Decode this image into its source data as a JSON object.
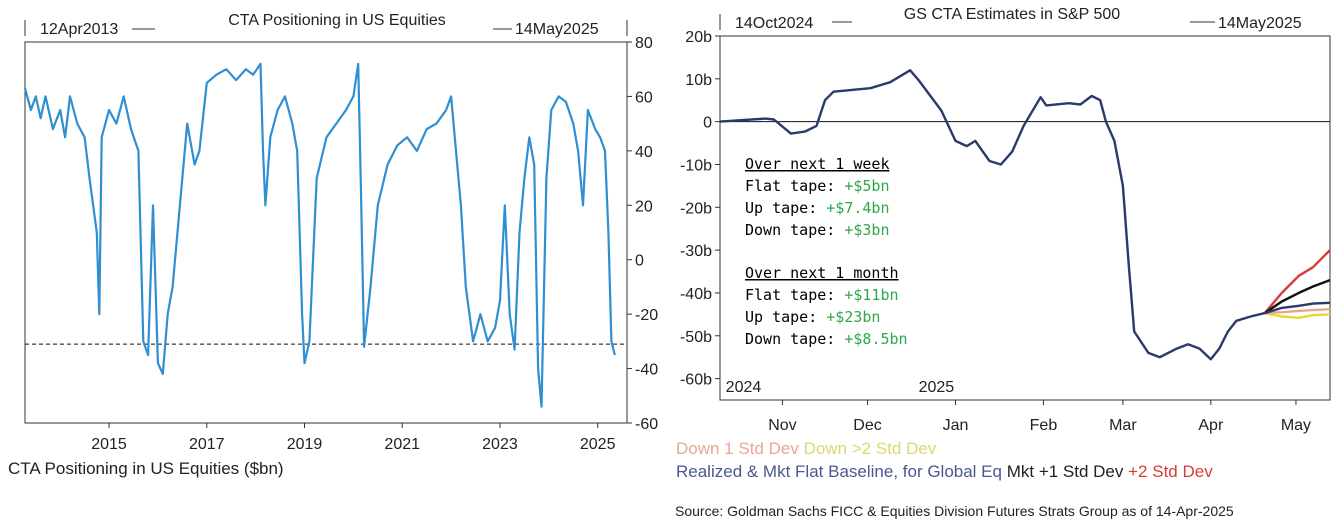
{
  "chart_data": [
    {
      "type": "line",
      "title": "CTA Positioning in US Equities",
      "start_label": "12Apr2013",
      "end_label": "14May2025",
      "legend": "CTA Positioning in US Equities ($bn)",
      "series_color": "#2f8fd0",
      "xlim": [
        2013.28,
        2025.6
      ],
      "ylim": [
        -60,
        80
      ],
      "x_ticks": [
        2015,
        2017,
        2019,
        2021,
        2023,
        2025
      ],
      "y_ticks": [
        80,
        60,
        40,
        20,
        0,
        -20,
        -40,
        -60
      ],
      "y_axis_side": "right",
      "reference_line": {
        "value": -31,
        "style": "dashed"
      },
      "x": [
        2013.28,
        2013.4,
        2013.5,
        2013.6,
        2013.7,
        2013.85,
        2014.0,
        2014.1,
        2014.2,
        2014.35,
        2014.5,
        2014.6,
        2014.75,
        2014.8,
        2014.85,
        2015.0,
        2015.15,
        2015.3,
        2015.45,
        2015.6,
        2015.7,
        2015.8,
        2015.9,
        2016.0,
        2016.1,
        2016.2,
        2016.3,
        2016.45,
        2016.6,
        2016.75,
        2016.85,
        2017.0,
        2017.2,
        2017.4,
        2017.6,
        2017.8,
        2017.95,
        2018.1,
        2018.15,
        2018.2,
        2018.3,
        2018.45,
        2018.6,
        2018.75,
        2018.85,
        2018.95,
        2019.0,
        2019.1,
        2019.25,
        2019.45,
        2019.65,
        2019.85,
        2020.0,
        2020.1,
        2020.15,
        2020.22,
        2020.35,
        2020.5,
        2020.7,
        2020.9,
        2021.1,
        2021.3,
        2021.5,
        2021.7,
        2021.9,
        2022.0,
        2022.1,
        2022.2,
        2022.3,
        2022.45,
        2022.6,
        2022.75,
        2022.9,
        2023.0,
        2023.1,
        2023.2,
        2023.3,
        2023.4,
        2023.5,
        2023.6,
        2023.7,
        2023.78,
        2023.85,
        2023.95,
        2024.05,
        2024.2,
        2024.35,
        2024.5,
        2024.6,
        2024.7,
        2024.8,
        2024.95,
        2025.05,
        2025.15,
        2025.22,
        2025.28,
        2025.35
      ],
      "y": [
        63,
        55,
        60,
        52,
        60,
        48,
        55,
        45,
        60,
        50,
        45,
        30,
        10,
        -20,
        45,
        55,
        50,
        60,
        48,
        40,
        -30,
        -35,
        20,
        -38,
        -42,
        -20,
        -10,
        20,
        50,
        35,
        40,
        65,
        68,
        70,
        66,
        70,
        68,
        72,
        40,
        20,
        45,
        55,
        60,
        50,
        40,
        -20,
        -38,
        -30,
        30,
        45,
        50,
        55,
        60,
        72,
        30,
        -32,
        -10,
        20,
        35,
        42,
        45,
        40,
        48,
        50,
        55,
        60,
        40,
        20,
        -10,
        -30,
        -20,
        -30,
        -25,
        -15,
        20,
        -20,
        -33,
        10,
        30,
        45,
        35,
        -40,
        -54,
        30,
        55,
        60,
        58,
        50,
        40,
        20,
        55,
        48,
        45,
        40,
        10,
        -30,
        -35
      ]
    },
    {
      "type": "line",
      "title": "GS CTA Estimates in S&P 500",
      "start_label": "14Oct2024",
      "end_label": "14May2025",
      "xlim": [
        "2024-10-24",
        "2025-05-27"
      ],
      "ylim": [
        -65,
        20
      ],
      "y_ticks": [
        "20b",
        "10b",
        "0",
        "-10b",
        "-20b",
        "-30b",
        "-40b",
        "-50b",
        "-60b"
      ],
      "y_tick_values": [
        20,
        10,
        0,
        -10,
        -20,
        -30,
        -40,
        -50,
        -60
      ],
      "x_ticks": [
        {
          "label": "Nov",
          "date": "2024-11-15"
        },
        {
          "label": "Dec",
          "date": "2024-12-15"
        },
        {
          "label": "Jan",
          "date": "2025-01-15"
        },
        {
          "label": "Feb",
          "date": "2025-02-15"
        },
        {
          "label": "Mar",
          "date": "2025-03-15"
        },
        {
          "label": "Apr",
          "date": "2025-04-15"
        },
        {
          "label": "May",
          "date": "2025-05-15"
        }
      ],
      "year_labels": [
        {
          "label": "2024",
          "date": "2024-10-26"
        },
        {
          "label": "2025",
          "date": "2025-01-02"
        }
      ],
      "zero_line": true,
      "series": [
        {
          "name": "Realized & Mkt Flat Baseline, for Global Eq",
          "color": "#2b3a6b",
          "x": [
            "2024-10-24",
            "2024-11-09",
            "2024-11-12",
            "2024-11-18",
            "2024-11-23",
            "2024-11-27",
            "2024-11-30",
            "2024-12-03",
            "2024-12-16",
            "2024-12-23",
            "2024-12-30",
            "2025-01-02",
            "2025-01-10",
            "2025-01-15",
            "2025-01-19",
            "2025-01-22",
            "2025-01-27",
            "2025-01-31",
            "2025-02-04",
            "2025-02-08",
            "2025-02-14",
            "2025-02-16",
            "2025-02-24",
            "2025-02-28",
            "2025-03-04",
            "2025-03-07",
            "2025-03-09",
            "2025-03-12",
            "2025-03-15",
            "2025-03-17",
            "2025-03-19",
            "2025-03-24",
            "2025-03-28",
            "2025-04-03",
            "2025-04-07",
            "2025-04-11",
            "2025-04-15",
            "2025-04-18",
            "2025-04-21",
            "2025-04-24",
            "2025-04-29",
            "2025-05-04",
            "2025-05-10",
            "2025-05-16",
            "2025-05-21",
            "2025-05-27"
          ],
          "y": [
            0,
            0.7,
            0.5,
            -2.8,
            -2.3,
            -1,
            5,
            7,
            7.8,
            9.2,
            12,
            9.7,
            2.6,
            -4.5,
            -5.7,
            -4.5,
            -9.2,
            -10,
            -7,
            -1,
            5.7,
            3.8,
            4.3,
            4,
            6,
            5,
            0,
            -4.5,
            -15,
            -33,
            -49,
            -54,
            -55,
            -53,
            -52,
            -53,
            -55.5,
            -53,
            -49,
            -46.5,
            -45.5,
            -44.7,
            -43.5,
            -43,
            -42.5,
            -42.3
          ]
        },
        {
          "name": "Mkt +1 Std Dev",
          "color": "#111111",
          "x": [
            "2025-05-04",
            "2025-05-10",
            "2025-05-16",
            "2025-05-21",
            "2025-05-27"
          ],
          "y": [
            -44.7,
            -42,
            -40,
            -38.5,
            -37
          ]
        },
        {
          "name": "+2 Std Dev",
          "color": "#d93a3a",
          "x": [
            "2025-05-04",
            "2025-05-10",
            "2025-05-16",
            "2025-05-21",
            "2025-05-27"
          ],
          "y": [
            -44.7,
            -40,
            -36,
            -34,
            -30
          ]
        },
        {
          "name": "Down 1 Std Dev",
          "color": "#e8a890",
          "x": [
            "2025-05-04",
            "2025-05-10",
            "2025-05-16",
            "2025-05-21",
            "2025-05-27"
          ],
          "y": [
            -44.7,
            -44.5,
            -44.2,
            -44,
            -43.8
          ]
        },
        {
          "name": "Down >2 Std Dev",
          "color": "#e6d832",
          "x": [
            "2025-05-04",
            "2025-05-10",
            "2025-05-16",
            "2025-05-21",
            "2025-05-27"
          ],
          "y": [
            -44.7,
            -45.5,
            -45.8,
            -45.2,
            -45
          ]
        }
      ],
      "annotations": {
        "week_title": "Over next 1 week",
        "week": [
          {
            "label": "Flat tape: ",
            "value": "+$5bn"
          },
          {
            "label": "Up tape: ",
            "value": "+$7.4bn"
          },
          {
            "label": "Down tape: ",
            "value": "+$3bn"
          }
        ],
        "month_title": "Over next 1 month",
        "month": [
          {
            "label": "Flat tape: ",
            "value": "+$11bn"
          },
          {
            "label": "Up tape: ",
            "value": "+$23bn"
          },
          {
            "label": "Down tape: ",
            "value": "+$8.5bn"
          }
        ],
        "value_color": "#2ea84a"
      },
      "legend_line1": [
        {
          "text": "Down 1 Std Dev",
          "color": "#e8a890"
        },
        {
          "text": " Down >2 Std Dev",
          "color": "#dada6a"
        }
      ],
      "legend_line2": [
        {
          "text": "Realized & Mkt Flat Baseline, for Global Eq",
          "color": "#4a5890"
        },
        {
          "text": " Mkt +1 Std Dev",
          "color": "#222222"
        },
        {
          "text": " +2 Std Dev",
          "color": "#d93a3a"
        }
      ]
    }
  ],
  "source": "Source: Goldman Sachs FICC & Equities Division Futures Strats Group as of 14-Apr-2025"
}
